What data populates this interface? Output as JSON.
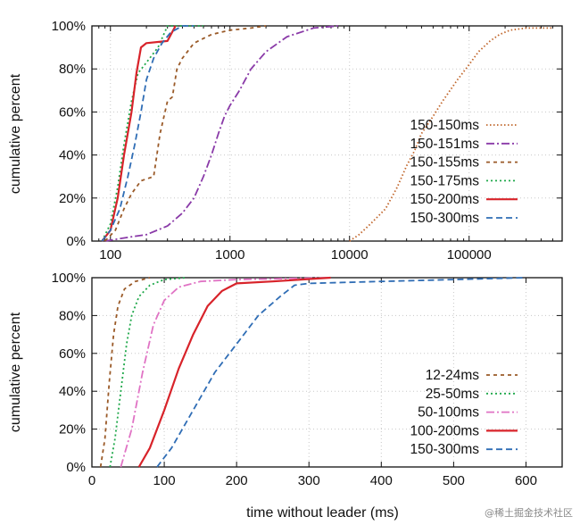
{
  "watermark": "@稀土掘金技术社区",
  "chart_data": [
    {
      "type": "line",
      "xscale": "log",
      "xlim": [
        70,
        600000
      ],
      "ylim": [
        0,
        100
      ],
      "ylabel": "cumulative percent",
      "xticks": [
        100,
        1000,
        10000,
        100000
      ],
      "xtick_labels": [
        "100",
        "1000",
        "10000",
        "100000"
      ],
      "yticks": [
        0,
        20,
        40,
        60,
        80,
        100
      ],
      "ytick_labels": [
        "0%",
        "20%",
        "40%",
        "60%",
        "80%",
        "100%"
      ],
      "grid": true,
      "legend": "right",
      "series": [
        {
          "name": "150-150ms",
          "color": "#c0652a",
          "dash": "1.5 2.5",
          "points": [
            [
              10000,
              0
            ],
            [
              12000,
              3
            ],
            [
              15000,
              8
            ],
            [
              20000,
              15
            ],
            [
              25000,
              25
            ],
            [
              30000,
              35
            ],
            [
              35000,
              42
            ],
            [
              40000,
              50
            ],
            [
              50000,
              58
            ],
            [
              60000,
              65
            ],
            [
              80000,
              75
            ],
            [
              100000,
              82
            ],
            [
              120000,
              88
            ],
            [
              150000,
              93
            ],
            [
              180000,
              96
            ],
            [
              220000,
              98
            ],
            [
              300000,
              99
            ],
            [
              500000,
              99
            ]
          ]
        },
        {
          "name": "150-151ms",
          "color": "#8a3aa8",
          "dash": "9 3 2 3",
          "points": [
            [
              90,
              0
            ],
            [
              150,
              2
            ],
            [
              200,
              3
            ],
            [
              300,
              7
            ],
            [
              400,
              13
            ],
            [
              500,
              20
            ],
            [
              600,
              30
            ],
            [
              700,
              40
            ],
            [
              800,
              50
            ],
            [
              900,
              58
            ],
            [
              1000,
              63
            ],
            [
              1200,
              70
            ],
            [
              1500,
              80
            ],
            [
              2000,
              88
            ],
            [
              3000,
              95
            ],
            [
              5000,
              99
            ],
            [
              8000,
              100
            ]
          ]
        },
        {
          "name": "150-155ms",
          "color": "#9a5a28",
          "dash": "4 4",
          "points": [
            [
              90,
              0
            ],
            [
              110,
              5
            ],
            [
              130,
              15
            ],
            [
              150,
              22
            ],
            [
              180,
              28
            ],
            [
              230,
              30
            ],
            [
              260,
              50
            ],
            [
              300,
              65
            ],
            [
              330,
              67
            ],
            [
              360,
              80
            ],
            [
              400,
              85
            ],
            [
              500,
              92
            ],
            [
              700,
              96
            ],
            [
              1000,
              98
            ],
            [
              1500,
              99
            ],
            [
              2000,
              100
            ]
          ]
        },
        {
          "name": "150-175ms",
          "color": "#1fa84a",
          "dash": "2 3",
          "points": [
            [
              85,
              0
            ],
            [
              100,
              8
            ],
            [
              115,
              25
            ],
            [
              130,
              45
            ],
            [
              150,
              65
            ],
            [
              170,
              78
            ],
            [
              200,
              83
            ],
            [
              250,
              90
            ],
            [
              300,
              100
            ],
            [
              600,
              100
            ]
          ]
        },
        {
          "name": "150-200ms",
          "color": "#d8232a",
          "dash": "",
          "points": [
            [
              85,
              0
            ],
            [
              100,
              5
            ],
            [
              115,
              20
            ],
            [
              130,
              40
            ],
            [
              150,
              60
            ],
            [
              165,
              78
            ],
            [
              180,
              90
            ],
            [
              200,
              92
            ],
            [
              300,
              93
            ],
            [
              350,
              100
            ]
          ]
        },
        {
          "name": "150-300ms",
          "color": "#2f6db5",
          "dash": "7 4",
          "points": [
            [
              85,
              0
            ],
            [
              100,
              5
            ],
            [
              120,
              15
            ],
            [
              140,
              30
            ],
            [
              160,
              45
            ],
            [
              180,
              60
            ],
            [
              200,
              75
            ],
            [
              230,
              85
            ],
            [
              270,
              92
            ],
            [
              320,
              97
            ],
            [
              400,
              100
            ],
            [
              500,
              100
            ]
          ]
        }
      ]
    },
    {
      "type": "line",
      "xscale": "linear",
      "xlim": [
        0,
        650
      ],
      "ylim": [
        0,
        100
      ],
      "xlabel": "time without leader (ms)",
      "ylabel": "cumulative percent",
      "xticks": [
        0,
        100,
        200,
        300,
        400,
        500,
        600
      ],
      "xtick_labels": [
        "0",
        "100",
        "200",
        "300",
        "400",
        "500",
        "600"
      ],
      "yticks": [
        0,
        20,
        40,
        60,
        80,
        100
      ],
      "ytick_labels": [
        "0%",
        "20%",
        "40%",
        "60%",
        "80%",
        "100%"
      ],
      "grid": true,
      "legend": "bottom-right",
      "series": [
        {
          "name": "12-24ms",
          "color": "#9a5a28",
          "dash": "4 4",
          "points": [
            [
              12,
              0
            ],
            [
              18,
              15
            ],
            [
              24,
              45
            ],
            [
              30,
              70
            ],
            [
              36,
              85
            ],
            [
              45,
              94
            ],
            [
              60,
              98
            ],
            [
              80,
              100
            ]
          ]
        },
        {
          "name": "25-50ms",
          "color": "#1fa84a",
          "dash": "2 3",
          "points": [
            [
              25,
              0
            ],
            [
              32,
              15
            ],
            [
              40,
              40
            ],
            [
              48,
              65
            ],
            [
              55,
              80
            ],
            [
              65,
              90
            ],
            [
              80,
              96
            ],
            [
              100,
              99
            ],
            [
              130,
              100
            ]
          ]
        },
        {
          "name": "50-100ms",
          "color": "#e073c4",
          "dash": "9 3 2 3",
          "points": [
            [
              40,
              0
            ],
            [
              55,
              20
            ],
            [
              70,
              50
            ],
            [
              85,
              75
            ],
            [
              100,
              88
            ],
            [
              120,
              95
            ],
            [
              150,
              98
            ],
            [
              200,
              99
            ],
            [
              330,
              100
            ]
          ]
        },
        {
          "name": "100-200ms",
          "color": "#d8232a",
          "dash": "",
          "points": [
            [
              65,
              0
            ],
            [
              80,
              10
            ],
            [
              100,
              30
            ],
            [
              120,
              52
            ],
            [
              140,
              70
            ],
            [
              160,
              85
            ],
            [
              180,
              93
            ],
            [
              200,
              97
            ],
            [
              250,
              98
            ],
            [
              330,
              100
            ]
          ]
        },
        {
          "name": "150-300ms",
          "color": "#2f6db5",
          "dash": "7 4",
          "points": [
            [
              90,
              0
            ],
            [
              110,
              10
            ],
            [
              140,
              30
            ],
            [
              170,
              50
            ],
            [
              200,
              65
            ],
            [
              230,
              80
            ],
            [
              260,
              90
            ],
            [
              280,
              96
            ],
            [
              300,
              97
            ],
            [
              400,
              98
            ],
            [
              600,
              100
            ]
          ]
        }
      ]
    }
  ]
}
